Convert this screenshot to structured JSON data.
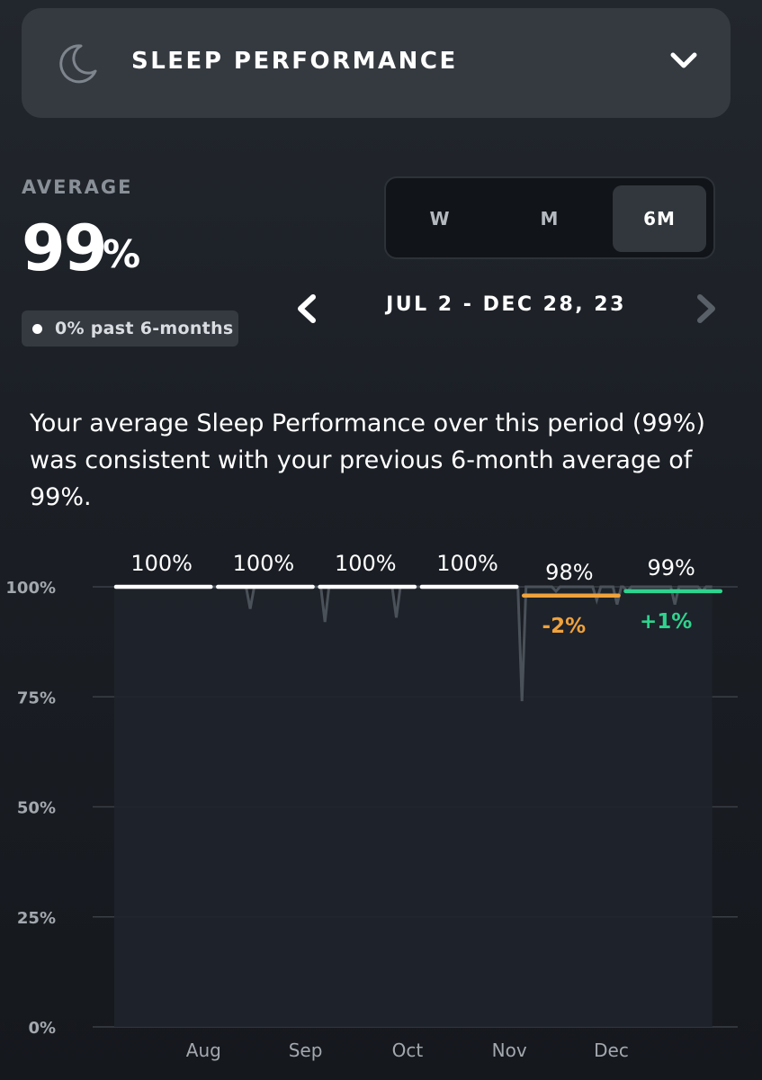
{
  "header": {
    "icon": "moon-icon",
    "title": "SLEEP PERFORMANCE",
    "toggle_icon": "chevron-down-icon"
  },
  "summary": {
    "label": "AVERAGE",
    "value": "99",
    "unit": "%",
    "badge": "0% past 6-months",
    "text": "Your average Sleep Performance over this period (99%) was consistent with your previous 6-month average of 99%."
  },
  "period_selector": {
    "options": [
      "W",
      "M",
      "6M"
    ],
    "selected": "6M"
  },
  "date_nav": {
    "range": "JUL 2 - DEC 28, 23",
    "prev_icon": "chevron-left-icon",
    "next_icon": "chevron-right-icon"
  },
  "chart_data": {
    "type": "line",
    "ylim": [
      0,
      100
    ],
    "y_ticks": [
      "0%",
      "25%",
      "50%",
      "75%",
      "100%"
    ],
    "x_tick_labels": [
      "Aug",
      "Sep",
      "Oct",
      "Nov",
      "Dec"
    ],
    "monthly": [
      {
        "value": 100,
        "label": "100%",
        "change": "",
        "color": "#ffffff"
      },
      {
        "value": 100,
        "label": "100%",
        "change": "",
        "color": "#ffffff"
      },
      {
        "value": 100,
        "label": "100%",
        "change": "",
        "color": "#ffffff"
      },
      {
        "value": 100,
        "label": "100%",
        "change": "",
        "color": "#ffffff"
      },
      {
        "value": 98,
        "label": "98%",
        "change": "-2%",
        "color": "#f0a23c"
      },
      {
        "value": 99,
        "label": "99%",
        "change": "+1%",
        "color": "#2ed38e"
      }
    ],
    "daily_dips": [
      {
        "day": 40,
        "value": 95
      },
      {
        "day": 62,
        "value": 92
      },
      {
        "day": 83,
        "value": 93
      },
      {
        "day": 115,
        "value": 100
      },
      {
        "day": 120,
        "value": 74
      },
      {
        "day": 130,
        "value": 99
      },
      {
        "day": 142,
        "value": 97
      },
      {
        "day": 148,
        "value": 96
      },
      {
        "day": 151,
        "value": 99
      },
      {
        "day": 165,
        "value": 96
      },
      {
        "day": 173,
        "value": 99
      }
    ],
    "colors": {
      "grid": "#3a3f46",
      "axis_text": "#a3a8af",
      "line": "#4a5159",
      "fill": "#1f242b"
    }
  }
}
